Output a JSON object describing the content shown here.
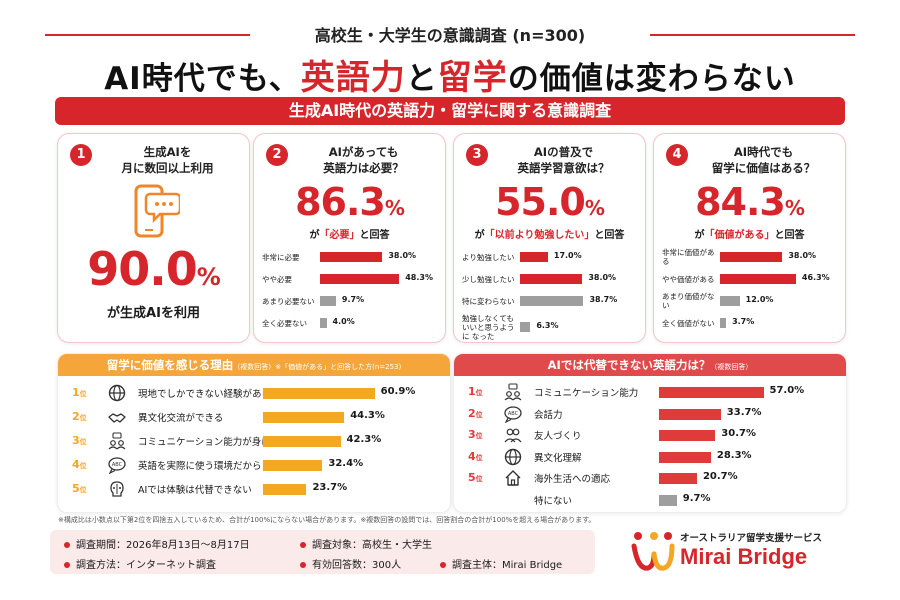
{
  "header": {
    "subtitle": "高校生・大学生の意識調査 (n=300)",
    "title_part1": "AI時代でも、",
    "title_red1": "英語力",
    "title_part2": "と",
    "title_red2": "留学",
    "title_part3": "の価値は変わらない",
    "banner": "生成AI時代の英語力・留学に関する意識調査"
  },
  "colors": {
    "red": "#d7262b",
    "orange": "#f5a623",
    "gray": "#9e9e9e",
    "orange_head": "#f4a63a"
  },
  "cards": [
    {
      "num": "1",
      "question_l1": "生成AIを",
      "question_l2": "月に数回以上利用",
      "value": "90.0",
      "unit": "%",
      "caption": "が生成AIを利用",
      "icon": "smartphone-chat-icon"
    },
    {
      "num": "2",
      "question_l1": "AIがあっても",
      "question_l2": "英語力は必要？",
      "value": "86.3",
      "unit": "%",
      "cap_pre": "が",
      "cap_hl": "「必要」",
      "cap_post": "と回答",
      "rows": [
        {
          "label": "非常に必要",
          "pct": 38.0,
          "val": "38.0%",
          "color": "red"
        },
        {
          "label": "やや必要",
          "pct": 48.3,
          "val": "48.3%",
          "color": "red"
        },
        {
          "label": "あまり必要ない",
          "pct": 9.7,
          "val": "9.7%",
          "color": "gray"
        },
        {
          "label": "全く必要ない",
          "pct": 4.0,
          "val": "4.0%",
          "color": "gray"
        }
      ]
    },
    {
      "num": "3",
      "question_l1": "AIの普及で",
      "question_l2": "英語学習意欲は？",
      "value": "55.0",
      "unit": "%",
      "cap_pre": "が",
      "cap_hl": "「以前より勉強したい」",
      "cap_post": "と回答",
      "rows": [
        {
          "label": "より勉強したい",
          "pct": 17.0,
          "val": "17.0%",
          "color": "red"
        },
        {
          "label": "少し勉強したい",
          "pct": 38.0,
          "val": "38.0%",
          "color": "red"
        },
        {
          "label": "特に変わらない",
          "pct": 38.7,
          "val": "38.7%",
          "color": "gray"
        },
        {
          "label": "勉強しなくても いいと思うように なった",
          "pct": 6.3,
          "val": "6.3%",
          "color": "gray"
        }
      ]
    },
    {
      "num": "4",
      "question_l1": "AI時代でも",
      "question_l2": "留学に価値はある？",
      "value": "84.3",
      "unit": "%",
      "cap_pre": "が",
      "cap_hl": "「価値がある」",
      "cap_post": "と回答",
      "rows": [
        {
          "label": "非常に価値がある",
          "pct": 38.0,
          "val": "38.0%",
          "color": "red"
        },
        {
          "label": "やや価値がある",
          "pct": 46.3,
          "val": "46.3%",
          "color": "red"
        },
        {
          "label": "あまり価値がない",
          "pct": 12.0,
          "val": "12.0%",
          "color": "gray"
        },
        {
          "label": "全く価値がない",
          "pct": 3.7,
          "val": "3.7%",
          "color": "gray"
        }
      ]
    }
  ],
  "panel_left": {
    "title": "留学に価値を感じる理由",
    "title_note": "（複数回答）※「価値がある」と回答した方(n=253)",
    "rows": [
      {
        "rank": "1",
        "rank_suffix": "位",
        "icon": "globe-icon",
        "text": "現地でしかできない経験がある",
        "pct": 60.9,
        "val": "60.9%"
      },
      {
        "rank": "2",
        "rank_suffix": "位",
        "icon": "handshake-icon",
        "text": "異文化交流ができる",
        "pct": 44.3,
        "val": "44.3%"
      },
      {
        "rank": "3",
        "rank_suffix": "位",
        "icon": "people-talk-icon",
        "text": "コミュニケーション能力が身につく",
        "pct": 42.3,
        "val": "42.3%"
      },
      {
        "rank": "4",
        "rank_suffix": "位",
        "icon": "abc-bubble-icon",
        "text": "英語を実際に使う環境だから",
        "pct": 32.4,
        "val": "32.4%"
      },
      {
        "rank": "5",
        "rank_suffix": "位",
        "icon": "ai-brain-icon",
        "text": "AIでは体験は代替できない",
        "pct": 23.7,
        "val": "23.7%"
      }
    ]
  },
  "panel_right": {
    "title": "AIでは代替できない英語力は？",
    "title_note": "（複数回答）",
    "rows": [
      {
        "rank": "1",
        "rank_suffix": "位",
        "icon": "people-talk-icon",
        "text": "コミュニケーション能力",
        "pct": 57.0,
        "val": "57.0%",
        "color": "red"
      },
      {
        "rank": "2",
        "rank_suffix": "位",
        "icon": "abc-bubble-icon",
        "text": "会話力",
        "pct": 33.7,
        "val": "33.7%",
        "color": "red"
      },
      {
        "rank": "3",
        "rank_suffix": "位",
        "icon": "friends-icon",
        "text": "友人づくり",
        "pct": 30.7,
        "val": "30.7%",
        "color": "red"
      },
      {
        "rank": "4",
        "rank_suffix": "位",
        "icon": "globe-icon",
        "text": "異文化理解",
        "pct": 28.3,
        "val": "28.3%",
        "color": "red"
      },
      {
        "rank": "5",
        "rank_suffix": "位",
        "icon": "house-icon",
        "text": "海外生活への適応",
        "pct": 20.7,
        "val": "20.7%",
        "color": "red"
      },
      {
        "rank": "",
        "rank_suffix": "",
        "icon": "",
        "text": "特にない",
        "pct": 9.7,
        "val": "9.7%",
        "color": "gray"
      }
    ]
  },
  "footer": {
    "note": "※構成比は小数点以下第2位を四捨五入しているため、合計が100%にならない場合があります。※複数回答の設問では、回答割合の合計が100%を超える場合があります。",
    "period": "調査期間：2026年8月13日～8月17日",
    "target": "調査対象：高校生・大学生",
    "method": "調査方法：インターネット調査",
    "responses": "有効回答数：300人",
    "sponsor": "調査主体：Mirai Bridge",
    "brand_tag": "オーストラリア留学支援サービス",
    "brand_name": "Mirai Bridge"
  },
  "chart_data": [
    {
      "type": "bar",
      "title": "AIがあっても英語力は必要？",
      "categories": [
        "非常に必要",
        "やや必要",
        "あまり必要ない",
        "全く必要ない"
      ],
      "values": [
        38.0,
        48.3,
        9.7,
        4.0
      ]
    },
    {
      "type": "bar",
      "title": "AIの普及で英語学習意欲は？",
      "categories": [
        "より勉強したい",
        "少し勉強したい",
        "特に変わらない",
        "勉強しなくてもいいと思うようになった"
      ],
      "values": [
        17.0,
        38.0,
        38.7,
        6.3
      ]
    },
    {
      "type": "bar",
      "title": "AI時代でも留学に価値はある？",
      "categories": [
        "非常に価値がある",
        "やや価値がある",
        "あまり価値がない",
        "全く価値がない"
      ],
      "values": [
        38.0,
        46.3,
        12.0,
        3.7
      ]
    },
    {
      "type": "bar",
      "title": "留学に価値を感じる理由",
      "categories": [
        "現地でしかできない経験がある",
        "異文化交流ができる",
        "コミュニケーション能力が身につく",
        "英語を実際に使う環境だから",
        "AIでは体験は代替できない"
      ],
      "values": [
        60.9,
        44.3,
        42.3,
        32.4,
        23.7
      ]
    },
    {
      "type": "bar",
      "title": "AIでは代替できない英語力は？",
      "categories": [
        "コミュニケーション能力",
        "会話力",
        "友人づくり",
        "異文化理解",
        "海外生活への適応",
        "特にない"
      ],
      "values": [
        57.0,
        33.7,
        30.7,
        28.3,
        20.7,
        9.7
      ]
    }
  ]
}
